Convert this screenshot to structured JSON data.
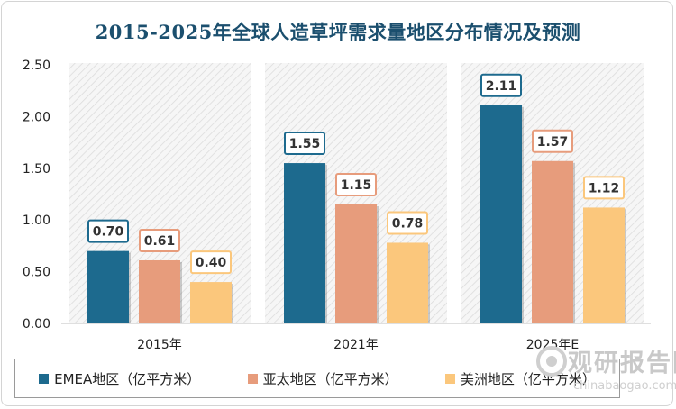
{
  "chart_data": {
    "type": "bar",
    "title": "2015-2025年全球人造草坪需求量地区分布情况及预测",
    "categories": [
      "2015年",
      "2021年",
      "2025年E"
    ],
    "series": [
      {
        "name": "EMEA地区（亿平方米）",
        "values": [
          0.7,
          1.55,
          2.11
        ],
        "color": "#1d6a8e"
      },
      {
        "name": "亚太地区（亿平方米）",
        "values": [
          0.61,
          1.15,
          1.57
        ],
        "color": "#e79c7c"
      },
      {
        "name": "美洲地区（亿平方米）",
        "values": [
          0.4,
          0.78,
          1.12
        ],
        "color": "#fbc77c"
      }
    ],
    "value_labels": [
      [
        "0.70",
        "1.55",
        "2.11"
      ],
      [
        "0.61",
        "1.15",
        "1.57"
      ],
      [
        "0.40",
        "0.78",
        "1.12"
      ]
    ],
    "label_border_colors": [
      "#1d6a8e",
      "#e79c7c",
      "#fbc77c"
    ],
    "yticks": [
      "0.00",
      "0.50",
      "1.00",
      "1.50",
      "2.00",
      "2.50"
    ],
    "ylim": [
      0,
      2.5
    ],
    "grid": false,
    "legend_position": "bottom",
    "xlabel": "",
    "ylabel": ""
  },
  "watermark": {
    "text": "观研报告网",
    "url": "chinabaogao.com"
  }
}
